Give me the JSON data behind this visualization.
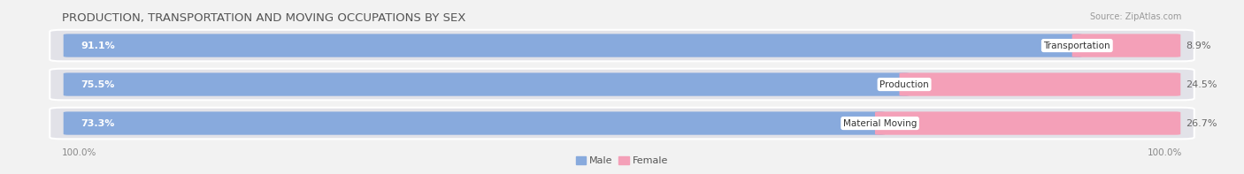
{
  "title": "PRODUCTION, TRANSPORTATION AND MOVING OCCUPATIONS BY SEX",
  "source": "Source: ZipAtlas.com",
  "categories": [
    "Transportation",
    "Production",
    "Material Moving"
  ],
  "male_values": [
    91.1,
    75.5,
    73.3
  ],
  "female_values": [
    8.9,
    24.5,
    26.7
  ],
  "male_color": "#88aadd",
  "female_color": "#ee6688",
  "male_light_color": "#aac4ee",
  "female_light_color": "#f4a0b8",
  "male_label": "Male",
  "female_label": "Female",
  "background_color": "#f2f2f2",
  "row_bg_color": "#e2e2e8",
  "title_fontsize": 9.5,
  "bar_label_fontsize": 8,
  "cat_label_fontsize": 7.5,
  "axis_label_fontsize": 7.5,
  "source_fontsize": 7
}
